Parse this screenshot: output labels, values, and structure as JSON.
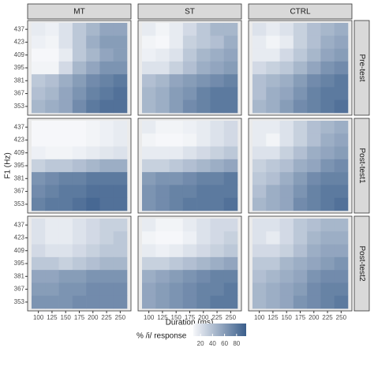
{
  "chart_data": {
    "type": "heatmap",
    "x_label": "Duration (ms)",
    "y_label": "F1 (Hz)",
    "columns": [
      "MT",
      "ST",
      "CTRL"
    ],
    "rows": [
      "Pre-test",
      "Post-test1",
      "Post-test2"
    ],
    "x": [
      100,
      125,
      150,
      175,
      200,
      225,
      250
    ],
    "y": [
      437,
      423,
      409,
      395,
      381,
      367,
      353
    ],
    "colorbar_title": "% /i/ response",
    "color_lim": [
      8,
      96
    ],
    "colorbar_ticks": [
      20,
      40,
      60,
      80
    ],
    "color_low": "#f6f7fa",
    "color_high": "#3a5e8b",
    "panels": [
      [
        [
          [
            15,
            12,
            20,
            35,
            45,
            55,
            55
          ],
          [
            12,
            10,
            20,
            35,
            50,
            60,
            60
          ],
          [
            8,
            8,
            15,
            35,
            45,
            55,
            60
          ],
          [
            10,
            10,
            25,
            45,
            55,
            65,
            65
          ],
          [
            35,
            40,
            50,
            60,
            70,
            75,
            80
          ],
          [
            40,
            45,
            55,
            65,
            75,
            80,
            85
          ],
          [
            45,
            50,
            55,
            70,
            80,
            85,
            85
          ]
        ],
        [
          [
            15,
            10,
            15,
            25,
            35,
            45,
            45
          ],
          [
            10,
            8,
            15,
            30,
            35,
            40,
            50
          ],
          [
            12,
            15,
            20,
            35,
            45,
            50,
            55
          ],
          [
            20,
            20,
            30,
            40,
            50,
            55,
            60
          ],
          [
            40,
            45,
            55,
            60,
            65,
            70,
            75
          ],
          [
            45,
            50,
            60,
            65,
            75,
            80,
            80
          ],
          [
            45,
            50,
            60,
            70,
            75,
            80,
            80
          ]
        ],
        [
          [
            20,
            15,
            20,
            30,
            40,
            45,
            50
          ],
          [
            15,
            10,
            15,
            30,
            40,
            50,
            55
          ],
          [
            15,
            15,
            25,
            35,
            45,
            55,
            60
          ],
          [
            25,
            30,
            35,
            45,
            55,
            65,
            70
          ],
          [
            40,
            45,
            50,
            60,
            70,
            75,
            80
          ],
          [
            40,
            50,
            55,
            65,
            75,
            80,
            80
          ],
          [
            45,
            50,
            60,
            70,
            75,
            80,
            85
          ]
        ]
      ],
      [
        [
          [
            8,
            5,
            5,
            8,
            10,
            12,
            15
          ],
          [
            8,
            5,
            5,
            8,
            10,
            12,
            15
          ],
          [
            12,
            10,
            10,
            12,
            15,
            18,
            20
          ],
          [
            30,
            35,
            35,
            40,
            45,
            50,
            50
          ],
          [
            65,
            70,
            75,
            75,
            80,
            80,
            80
          ],
          [
            70,
            75,
            80,
            80,
            85,
            85,
            85
          ],
          [
            75,
            80,
            80,
            85,
            90,
            85,
            85
          ]
        ],
        [
          [
            15,
            10,
            10,
            12,
            15,
            20,
            25
          ],
          [
            10,
            8,
            8,
            10,
            15,
            20,
            25
          ],
          [
            15,
            15,
            15,
            20,
            25,
            30,
            35
          ],
          [
            30,
            30,
            35,
            40,
            45,
            50,
            55
          ],
          [
            60,
            65,
            65,
            70,
            75,
            75,
            80
          ],
          [
            65,
            70,
            75,
            75,
            80,
            80,
            80
          ],
          [
            65,
            70,
            75,
            80,
            80,
            80,
            85
          ]
        ],
        [
          [
            15,
            15,
            20,
            30,
            40,
            45,
            50
          ],
          [
            15,
            10,
            20,
            30,
            40,
            50,
            55
          ],
          [
            20,
            20,
            30,
            40,
            50,
            55,
            60
          ],
          [
            30,
            35,
            40,
            50,
            55,
            65,
            70
          ],
          [
            35,
            40,
            50,
            60,
            70,
            75,
            75
          ],
          [
            40,
            50,
            55,
            65,
            75,
            80,
            80
          ],
          [
            45,
            50,
            55,
            70,
            75,
            80,
            85
          ]
        ]
      ],
      [
        [
          [
            20,
            15,
            15,
            20,
            25,
            30,
            30
          ],
          [
            20,
            15,
            15,
            20,
            25,
            30,
            35
          ],
          [
            25,
            20,
            20,
            25,
            30,
            35,
            35
          ],
          [
            35,
            35,
            30,
            35,
            40,
            45,
            45
          ],
          [
            55,
            55,
            60,
            60,
            65,
            65,
            65
          ],
          [
            60,
            60,
            65,
            65,
            70,
            70,
            70
          ],
          [
            65,
            65,
            65,
            70,
            70,
            70,
            70
          ]
        ],
        [
          [
            15,
            10,
            10,
            15,
            20,
            25,
            25
          ],
          [
            10,
            8,
            8,
            12,
            20,
            25,
            30
          ],
          [
            15,
            12,
            15,
            20,
            25,
            30,
            35
          ],
          [
            30,
            30,
            35,
            40,
            45,
            50,
            55
          ],
          [
            50,
            55,
            60,
            65,
            70,
            75,
            75
          ],
          [
            55,
            60,
            65,
            70,
            75,
            75,
            80
          ],
          [
            55,
            60,
            65,
            70,
            75,
            80,
            80
          ]
        ],
        [
          [
            20,
            20,
            25,
            35,
            40,
            45,
            45
          ],
          [
            20,
            15,
            25,
            35,
            45,
            50,
            50
          ],
          [
            25,
            25,
            30,
            40,
            50,
            55,
            55
          ],
          [
            35,
            35,
            45,
            50,
            55,
            60,
            65
          ],
          [
            40,
            45,
            50,
            55,
            65,
            70,
            70
          ],
          [
            45,
            50,
            55,
            60,
            70,
            75,
            75
          ],
          [
            45,
            50,
            55,
            65,
            70,
            75,
            80
          ]
        ]
      ]
    ]
  }
}
